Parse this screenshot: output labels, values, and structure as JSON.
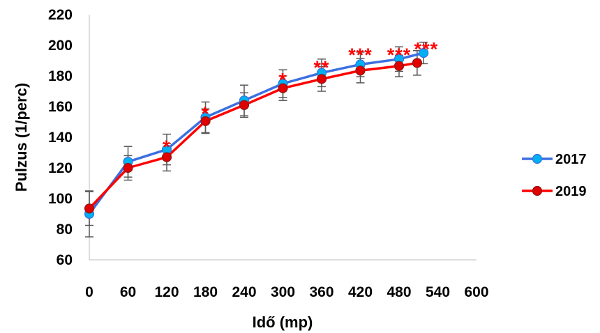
{
  "chart_data": {
    "type": "line",
    "title": "",
    "xlabel": "Idő (mp)",
    "ylabel": "Pulzus (1/perc)",
    "xlim": [
      0,
      600
    ],
    "ylim": [
      60,
      220
    ],
    "x_ticks": [
      "0",
      "60",
      "120",
      "180",
      "240",
      "300",
      "360",
      "420",
      "480",
      "540",
      "600"
    ],
    "y_ticks": [
      "60",
      "80",
      "100",
      "120",
      "140",
      "160",
      "180",
      "200",
      "220"
    ],
    "grid": false,
    "legend_position": "right",
    "series": [
      {
        "name": "2017",
        "color": "#3c6fe0",
        "marker_color": "#00b0f0",
        "x": [
          0,
          60,
          120,
          180,
          240,
          300,
          360,
          420,
          480,
          518
        ],
        "y": [
          90,
          124,
          132,
          153,
          164,
          175,
          182,
          187.5,
          191,
          195
        ],
        "error": [
          15,
          10,
          10,
          10,
          10,
          9,
          9,
          8,
          8,
          7
        ]
      },
      {
        "name": "2019",
        "color": "#ff0000",
        "marker_color": "#e00000",
        "x": [
          0,
          60,
          120,
          180,
          240,
          300,
          360,
          420,
          480,
          508
        ],
        "y": [
          93.5,
          120,
          127,
          150.5,
          161,
          172,
          178,
          183.5,
          186.5,
          188.5
        ],
        "error": [
          11,
          8,
          9,
          8,
          8,
          8,
          8,
          8,
          7,
          8
        ]
      }
    ],
    "annotations": [
      {
        "x": 120,
        "y": 134,
        "text": "*"
      },
      {
        "x": 180,
        "y": 156,
        "text": "*"
      },
      {
        "x": 300,
        "y": 178,
        "text": "*"
      },
      {
        "x": 360,
        "y": 186,
        "text": "**"
      },
      {
        "x": 420,
        "y": 194,
        "text": "***"
      },
      {
        "x": 480,
        "y": 194,
        "text": "***"
      },
      {
        "x": 522,
        "y": 198,
        "text": "***"
      }
    ]
  }
}
